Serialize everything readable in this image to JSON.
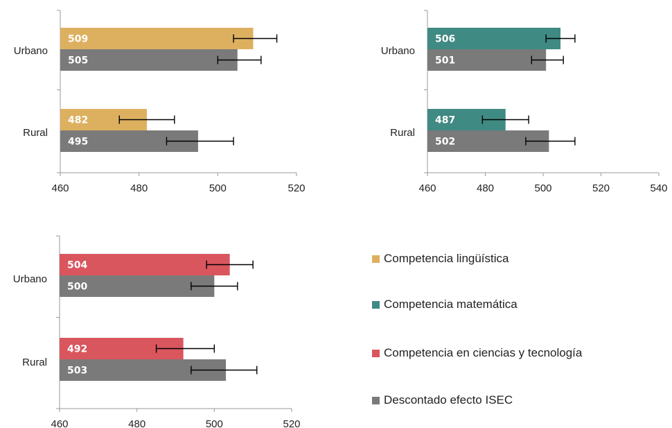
{
  "legend": [
    {
      "label": "Competencia lingüística",
      "color": "#ddb060"
    },
    {
      "label": "Competencia matemática",
      "color": "#3f8a82"
    },
    {
      "label": "Competencia en ciencias y tecnología",
      "color": "#d9565e"
    },
    {
      "label": "Descontado efecto ISEC",
      "color": "#7a7a7a"
    }
  ],
  "chart_data": [
    {
      "type": "bar",
      "orientation": "horizontal",
      "categories": [
        "Urbano",
        "Rural"
      ],
      "xlim": [
        460,
        520
      ],
      "ticks": [
        "460",
        "480",
        "500",
        "520"
      ],
      "series": [
        {
          "name": "Competencia lingüística",
          "color": "#ddb060",
          "values": [
            509,
            482
          ],
          "labels": [
            "509",
            "482"
          ],
          "error_low": [
            504,
            475
          ],
          "error_high": [
            515,
            489
          ]
        },
        {
          "name": "Descontado efecto ISEC",
          "color": "#7a7a7a",
          "values": [
            505,
            495
          ],
          "labels": [
            "505",
            "495"
          ],
          "error_low": [
            500,
            487
          ],
          "error_high": [
            511,
            504
          ]
        }
      ]
    },
    {
      "type": "bar",
      "orientation": "horizontal",
      "categories": [
        "Urbano",
        "Rural"
      ],
      "xlim": [
        460,
        540
      ],
      "ticks": [
        "460",
        "480",
        "500",
        "520",
        "540"
      ],
      "series": [
        {
          "name": "Competencia matemática",
          "color": "#3f8a82",
          "values": [
            506,
            487
          ],
          "labels": [
            "506",
            "487"
          ],
          "error_low": [
            501,
            479
          ],
          "error_high": [
            511,
            495
          ]
        },
        {
          "name": "Descontado efecto ISEC",
          "color": "#7a7a7a",
          "values": [
            501,
            502
          ],
          "labels": [
            "501",
            "502"
          ],
          "error_low": [
            496,
            494
          ],
          "error_high": [
            507,
            511
          ]
        }
      ]
    },
    {
      "type": "bar",
      "orientation": "horizontal",
      "categories": [
        "Urbano",
        "Rural"
      ],
      "xlim": [
        460,
        520
      ],
      "ticks": [
        "460",
        "480",
        "500",
        "520"
      ],
      "series": [
        {
          "name": "Competencia en ciencias y tecnología",
          "color": "#d9565e",
          "values": [
            504,
            492
          ],
          "labels": [
            "504",
            "492"
          ],
          "error_low": [
            498,
            485
          ],
          "error_high": [
            510,
            500
          ]
        },
        {
          "name": "Descontado efecto ISEC",
          "color": "#7a7a7a",
          "values": [
            500,
            503
          ],
          "labels": [
            "500",
            "503"
          ],
          "error_low": [
            494,
            494
          ],
          "error_high": [
            506,
            511
          ]
        }
      ]
    }
  ]
}
